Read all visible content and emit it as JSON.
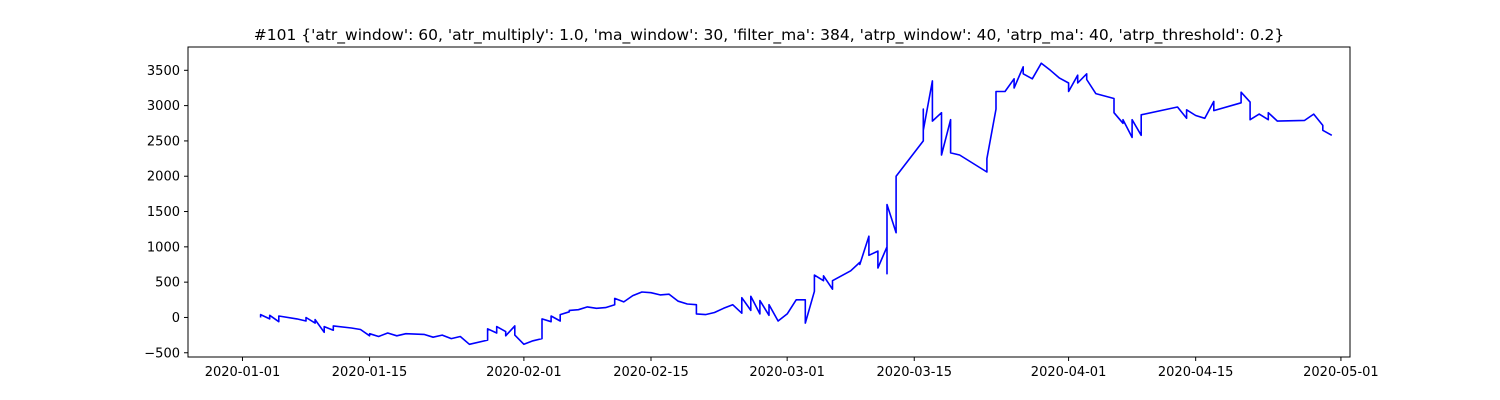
{
  "chart_data": {
    "type": "line",
    "title": "#101 {'atr_window': 60, 'atr_multiply': 1.0, 'ma_window': 30, 'filter_ma': 384, 'atrp_window': 40, 'atrp_ma': 40, 'atrp_threshold': 0.2}",
    "xlabel": "",
    "ylabel": "",
    "x_range": [
      "2019-12-26",
      "2020-05-02"
    ],
    "ylim": [
      -560,
      3830
    ],
    "x_ticks": [
      "2020-01-01",
      "2020-01-15",
      "2020-02-01",
      "2020-02-15",
      "2020-03-01",
      "2020-03-15",
      "2020-04-01",
      "2020-04-15",
      "2020-05-01"
    ],
    "y_ticks": [
      -500,
      0,
      500,
      1000,
      1500,
      2000,
      2500,
      3000,
      3500
    ],
    "grid": false,
    "legend": "none",
    "series": [
      {
        "color": "#0000ff",
        "points": [
          [
            "2020-01-03",
            0
          ],
          [
            "2020-01-03",
            40
          ],
          [
            "2020-01-04",
            -20
          ],
          [
            "2020-01-04",
            30
          ],
          [
            "2020-01-05",
            -60
          ],
          [
            "2020-01-05",
            20
          ],
          [
            "2020-01-07",
            -20
          ],
          [
            "2020-01-08",
            -50
          ],
          [
            "2020-01-08",
            0
          ],
          [
            "2020-01-09",
            -80
          ],
          [
            "2020-01-09",
            -30
          ],
          [
            "2020-01-10",
            -210
          ],
          [
            "2020-01-10",
            -130
          ],
          [
            "2020-01-11",
            -180
          ],
          [
            "2020-01-11",
            -120
          ],
          [
            "2020-01-13",
            -150
          ],
          [
            "2020-01-14",
            -170
          ],
          [
            "2020-01-15",
            -260
          ],
          [
            "2020-01-15",
            -230
          ],
          [
            "2020-01-16",
            -270
          ],
          [
            "2020-01-17",
            -220
          ],
          [
            "2020-01-18",
            -260
          ],
          [
            "2020-01-19",
            -230
          ],
          [
            "2020-01-21",
            -240
          ],
          [
            "2020-01-22",
            -280
          ],
          [
            "2020-01-23",
            -250
          ],
          [
            "2020-01-24",
            -300
          ],
          [
            "2020-01-25",
            -270
          ],
          [
            "2020-01-26",
            -380
          ],
          [
            "2020-01-28",
            -320
          ],
          [
            "2020-01-28",
            -160
          ],
          [
            "2020-01-29",
            -220
          ],
          [
            "2020-01-29",
            -130
          ],
          [
            "2020-01-30",
            -200
          ],
          [
            "2020-01-30",
            -260
          ],
          [
            "2020-01-31",
            -120
          ],
          [
            "2020-01-31",
            -250
          ],
          [
            "2020-02-01",
            -380
          ],
          [
            "2020-02-02",
            -330
          ],
          [
            "2020-02-03",
            -300
          ],
          [
            "2020-02-03",
            -20
          ],
          [
            "2020-02-04",
            -60
          ],
          [
            "2020-02-04",
            20
          ],
          [
            "2020-02-05",
            -50
          ],
          [
            "2020-02-05",
            40
          ],
          [
            "2020-02-06",
            80
          ],
          [
            "2020-02-06",
            100
          ],
          [
            "2020-02-07",
            110
          ],
          [
            "2020-02-08",
            150
          ],
          [
            "2020-02-09",
            130
          ],
          [
            "2020-02-10",
            140
          ],
          [
            "2020-02-11",
            180
          ],
          [
            "2020-02-11",
            270
          ],
          [
            "2020-02-12",
            220
          ],
          [
            "2020-02-13",
            310
          ],
          [
            "2020-02-14",
            360
          ],
          [
            "2020-02-15",
            350
          ],
          [
            "2020-02-16",
            320
          ],
          [
            "2020-02-17",
            330
          ],
          [
            "2020-02-18",
            230
          ],
          [
            "2020-02-19",
            190
          ],
          [
            "2020-02-20",
            180
          ],
          [
            "2020-02-20",
            50
          ],
          [
            "2020-02-21",
            40
          ],
          [
            "2020-02-22",
            70
          ],
          [
            "2020-02-23",
            130
          ],
          [
            "2020-02-24",
            180
          ],
          [
            "2020-02-25",
            60
          ],
          [
            "2020-02-25",
            280
          ],
          [
            "2020-02-26",
            100
          ],
          [
            "2020-02-26",
            300
          ],
          [
            "2020-02-27",
            50
          ],
          [
            "2020-02-27",
            240
          ],
          [
            "2020-02-28",
            30
          ],
          [
            "2020-02-28",
            180
          ],
          [
            "2020-02-29",
            -50
          ],
          [
            "2020-03-01",
            50
          ],
          [
            "2020-03-02",
            250
          ],
          [
            "2020-03-03",
            250
          ],
          [
            "2020-03-03",
            -80
          ],
          [
            "2020-03-04",
            370
          ],
          [
            "2020-03-04",
            600
          ],
          [
            "2020-03-05",
            520
          ],
          [
            "2020-03-05",
            590
          ],
          [
            "2020-03-06",
            400
          ],
          [
            "2020-03-06",
            520
          ],
          [
            "2020-03-08",
            660
          ],
          [
            "2020-03-09",
            780
          ],
          [
            "2020-03-09",
            750
          ],
          [
            "2020-03-10",
            1150
          ],
          [
            "2020-03-10",
            880
          ],
          [
            "2020-03-11",
            940
          ],
          [
            "2020-03-11",
            700
          ],
          [
            "2020-03-12",
            1000
          ],
          [
            "2020-03-12",
            620
          ],
          [
            "2020-03-12",
            1600
          ],
          [
            "2020-03-13",
            1200
          ],
          [
            "2020-03-13",
            1640
          ],
          [
            "2020-03-13",
            2000
          ],
          [
            "2020-03-16",
            2500
          ],
          [
            "2020-03-16",
            2950
          ],
          [
            "2020-03-16",
            2650
          ],
          [
            "2020-03-17",
            3350
          ],
          [
            "2020-03-17",
            2780
          ],
          [
            "2020-03-18",
            2900
          ],
          [
            "2020-03-18",
            2300
          ],
          [
            "2020-03-19",
            2800
          ],
          [
            "2020-03-19",
            2330
          ],
          [
            "2020-03-20",
            2300
          ],
          [
            "2020-03-23",
            2060
          ],
          [
            "2020-03-23",
            2250
          ],
          [
            "2020-03-24",
            2950
          ],
          [
            "2020-03-24",
            3200
          ],
          [
            "2020-03-25",
            3200
          ],
          [
            "2020-03-26",
            3380
          ],
          [
            "2020-03-26",
            3250
          ],
          [
            "2020-03-27",
            3550
          ],
          [
            "2020-03-27",
            3450
          ],
          [
            "2020-03-28",
            3380
          ],
          [
            "2020-03-29",
            3600
          ],
          [
            "2020-03-30",
            3500
          ],
          [
            "2020-03-31",
            3390
          ],
          [
            "2020-04-01",
            3320
          ],
          [
            "2020-04-01",
            3200
          ],
          [
            "2020-04-02",
            3430
          ],
          [
            "2020-04-02",
            3320
          ],
          [
            "2020-04-03",
            3450
          ],
          [
            "2020-04-03",
            3370
          ],
          [
            "2020-04-04",
            3170
          ],
          [
            "2020-04-06",
            3100
          ],
          [
            "2020-04-06",
            2900
          ],
          [
            "2020-04-07",
            2750
          ],
          [
            "2020-04-07",
            2800
          ],
          [
            "2020-04-08",
            2550
          ],
          [
            "2020-04-08",
            2800
          ],
          [
            "2020-04-09",
            2580
          ],
          [
            "2020-04-09",
            2870
          ],
          [
            "2020-04-13",
            2980
          ],
          [
            "2020-04-14",
            2820
          ],
          [
            "2020-04-14",
            2940
          ],
          [
            "2020-04-15",
            2860
          ],
          [
            "2020-04-16",
            2820
          ],
          [
            "2020-04-17",
            3060
          ],
          [
            "2020-04-17",
            2930
          ],
          [
            "2020-04-20",
            3040
          ],
          [
            "2020-04-20",
            3190
          ],
          [
            "2020-04-21",
            3050
          ],
          [
            "2020-04-21",
            2800
          ],
          [
            "2020-04-22",
            2880
          ],
          [
            "2020-04-23",
            2800
          ],
          [
            "2020-04-23",
            2900
          ],
          [
            "2020-04-24",
            2780
          ],
          [
            "2020-04-27",
            2790
          ],
          [
            "2020-04-28",
            2880
          ],
          [
            "2020-04-29",
            2720
          ],
          [
            "2020-04-29",
            2650
          ],
          [
            "2020-04-30",
            2580
          ]
        ]
      }
    ]
  }
}
